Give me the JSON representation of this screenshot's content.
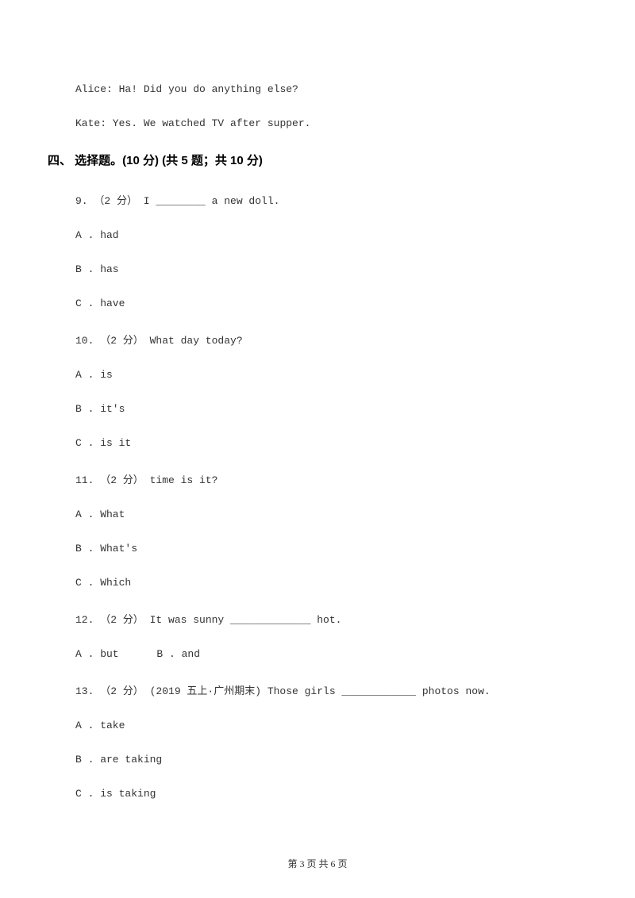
{
  "dialogue": {
    "line1": "Alice: Ha! Did you do anything else?",
    "line2": "Kate: Yes. We watched TV after supper."
  },
  "section4": {
    "heading": "四、 选择题。(10 分)  (共 5 题；共 10 分)"
  },
  "q9": {
    "stem": "9. （2 分） I ________ a new doll.",
    "optA": "A . had",
    "optB": "B . has",
    "optC": "C . have"
  },
  "q10": {
    "stem": "10. （2 分） What day        today?",
    "optA": "A . is",
    "optB": "B . it's",
    "optC": "C . is it"
  },
  "q11": {
    "stem": "11. （2 分）      time is it?",
    "optA": "A . What",
    "optB": "B . What's",
    "optC": "C . Which"
  },
  "q12": {
    "stem": "12. （2 分） It was sunny _____________ hot.",
    "optA": "A . but",
    "optB": "B . and"
  },
  "q13": {
    "stem": "13. （2 分） (2019 五上·广州期末) Those girls ____________ photos now.",
    "optA": "A . take",
    "optB": "B . are taking",
    "optC": "C . is taking"
  },
  "footer": {
    "text": "第 3 页 共 6 页"
  }
}
